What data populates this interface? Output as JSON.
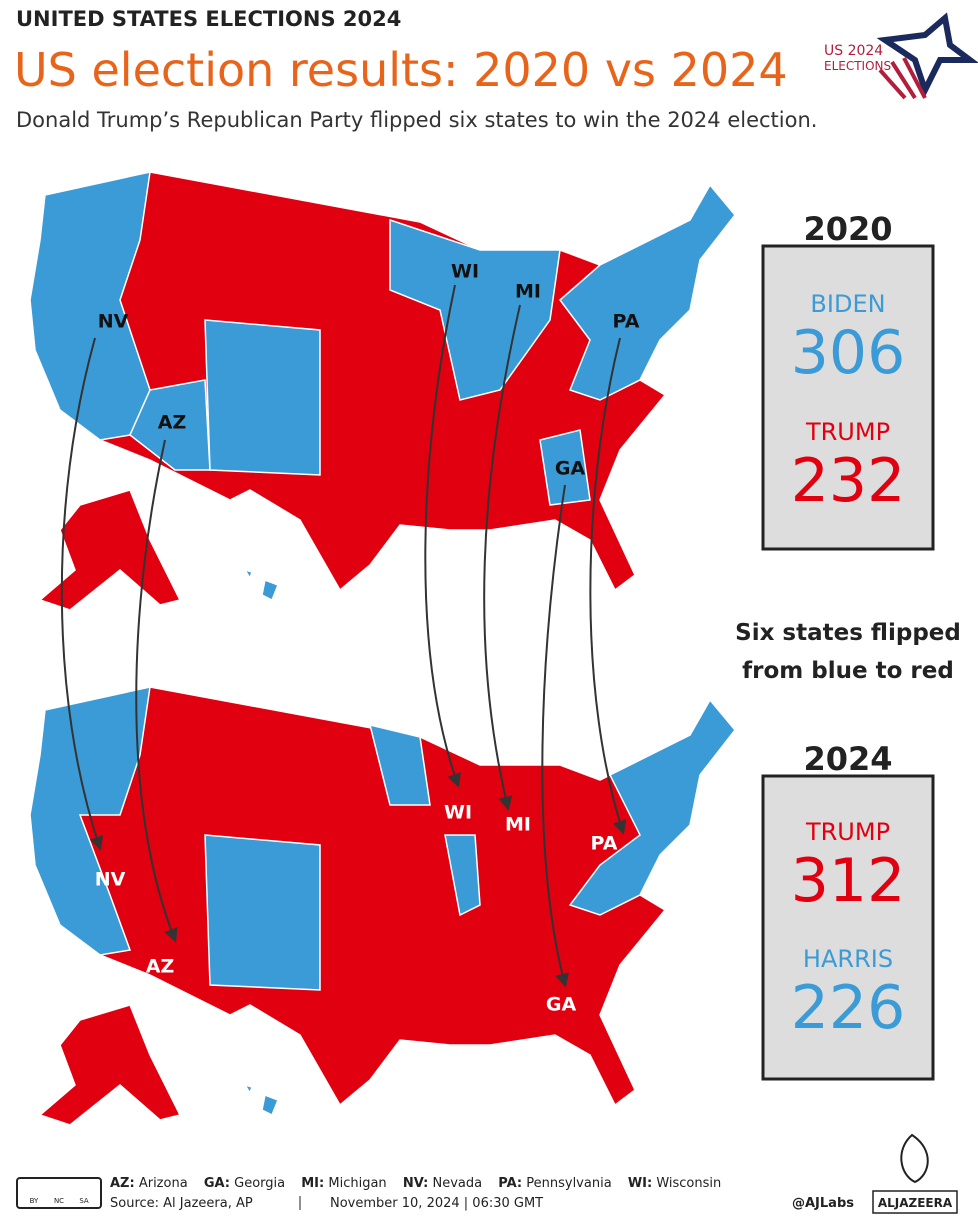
{
  "header": {
    "kicker": "UNITED STATES ELECTIONS 2024",
    "title": "US election results: 2020 vs 2024",
    "subtitle": "Donald Trump’s Republican Party flipped six states to win the 2024 election.",
    "logo": [
      "US 2024",
      "ELECTIONS"
    ]
  },
  "top_map_labels": [
    "NV",
    "AZ",
    "WI",
    "MI",
    "PA",
    "GA"
  ],
  "bottom_map_labels": [
    "NV",
    "AZ",
    "WI",
    "MI",
    "PA",
    "GA"
  ],
  "results": [
    {
      "year": "2020",
      "candidates": [
        {
          "name": "BIDEN",
          "votes": 306
        },
        {
          "name": "TRUMP",
          "votes": 232
        }
      ]
    },
    {
      "year": "2024",
      "candidates": [
        {
          "name": "TRUMP",
          "votes": 312
        },
        {
          "name": "HARRIS",
          "votes": 226
        }
      ]
    }
  ],
  "note": [
    "Six states flipped",
    "from blue to red"
  ],
  "footer": {
    "legend": [
      {
        "abbr": "AZ:",
        "name": "Arizona"
      },
      {
        "abbr": "GA:",
        "name": "Georgia"
      },
      {
        "abbr": "MI:",
        "name": "Michigan"
      },
      {
        "abbr": "NV:",
        "name": "Nevada"
      },
      {
        "abbr": "PA:",
        "name": "Pennsylvania"
      },
      {
        "abbr": "WI:",
        "name": "Wisconsin"
      }
    ],
    "source": "Source:  Al Jazeera, AP",
    "date": "November 10, 2024 | 06:30 GMT",
    "handle": "@AJLabs",
    "brand": "ALJAZEERA",
    "license": [
      "BY",
      "NC",
      "SA"
    ]
  }
}
